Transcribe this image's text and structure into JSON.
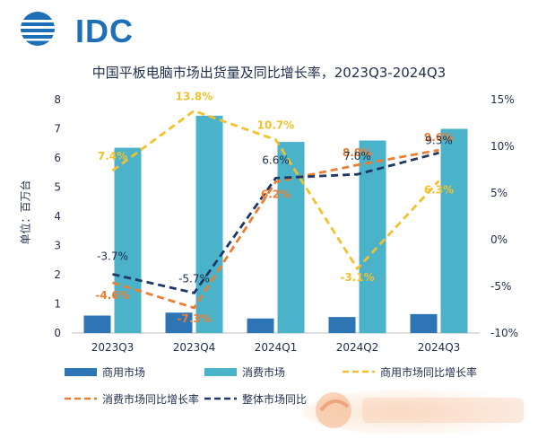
{
  "header": {
    "logo_text": "IDC"
  },
  "chart_data": {
    "type": "bar",
    "title": "中国平板电脑市场出货量及同比增长率，2023Q3-2024Q3",
    "ylabel": "单位：百万台",
    "categories": [
      "2023Q3",
      "2023Q4",
      "2024Q1",
      "2024Q2",
      "2024Q3"
    ],
    "ylim": [
      0,
      8
    ],
    "yticks": [
      "0",
      "1",
      "2",
      "3",
      "4",
      "5",
      "6",
      "7",
      "8"
    ],
    "y2lim": [
      -10,
      15
    ],
    "y2ticks": [
      "-10%",
      "-5%",
      "0%",
      "5%",
      "10%",
      "15%"
    ],
    "series": [
      {
        "name": "商用市场",
        "kind": "bar",
        "axis": "left",
        "color": "#2e75b6",
        "values": [
          0.6,
          0.7,
          0.5,
          0.55,
          0.65
        ]
      },
      {
        "name": "消费市场",
        "kind": "bar",
        "axis": "left",
        "color": "#4bb3c9",
        "values": [
          6.35,
          7.45,
          6.55,
          6.6,
          7.0
        ]
      },
      {
        "name": "商用市场同比增长率",
        "kind": "line",
        "axis": "right",
        "color": "#f2c12e",
        "values": [
          7.4,
          13.8,
          10.7,
          -3.1,
          6.3
        ],
        "labels": [
          "7.4%",
          "13.8%",
          "10.7%",
          "-3.1%",
          "6.3%"
        ]
      },
      {
        "name": "消费市场同比增长率",
        "kind": "line",
        "axis": "right",
        "color": "#ed7d31",
        "values": [
          -4.6,
          -7.3,
          6.2,
          8.0,
          9.6
        ],
        "labels": [
          "-4.6%",
          "-7.3%",
          "6.2%",
          "8.0%",
          "9.6%"
        ]
      },
      {
        "name": "整体市场同比增长率",
        "kind": "line",
        "axis": "right",
        "color": "#1f3864",
        "values": [
          -3.7,
          -5.7,
          6.6,
          7.0,
          9.3
        ],
        "labels": [
          "-3.7%",
          "-5.7%",
          "6.6%",
          "7.0%",
          "9.3%"
        ]
      }
    ],
    "legend_position": "bottom",
    "legend_truncated_label": "整体市场同比"
  }
}
